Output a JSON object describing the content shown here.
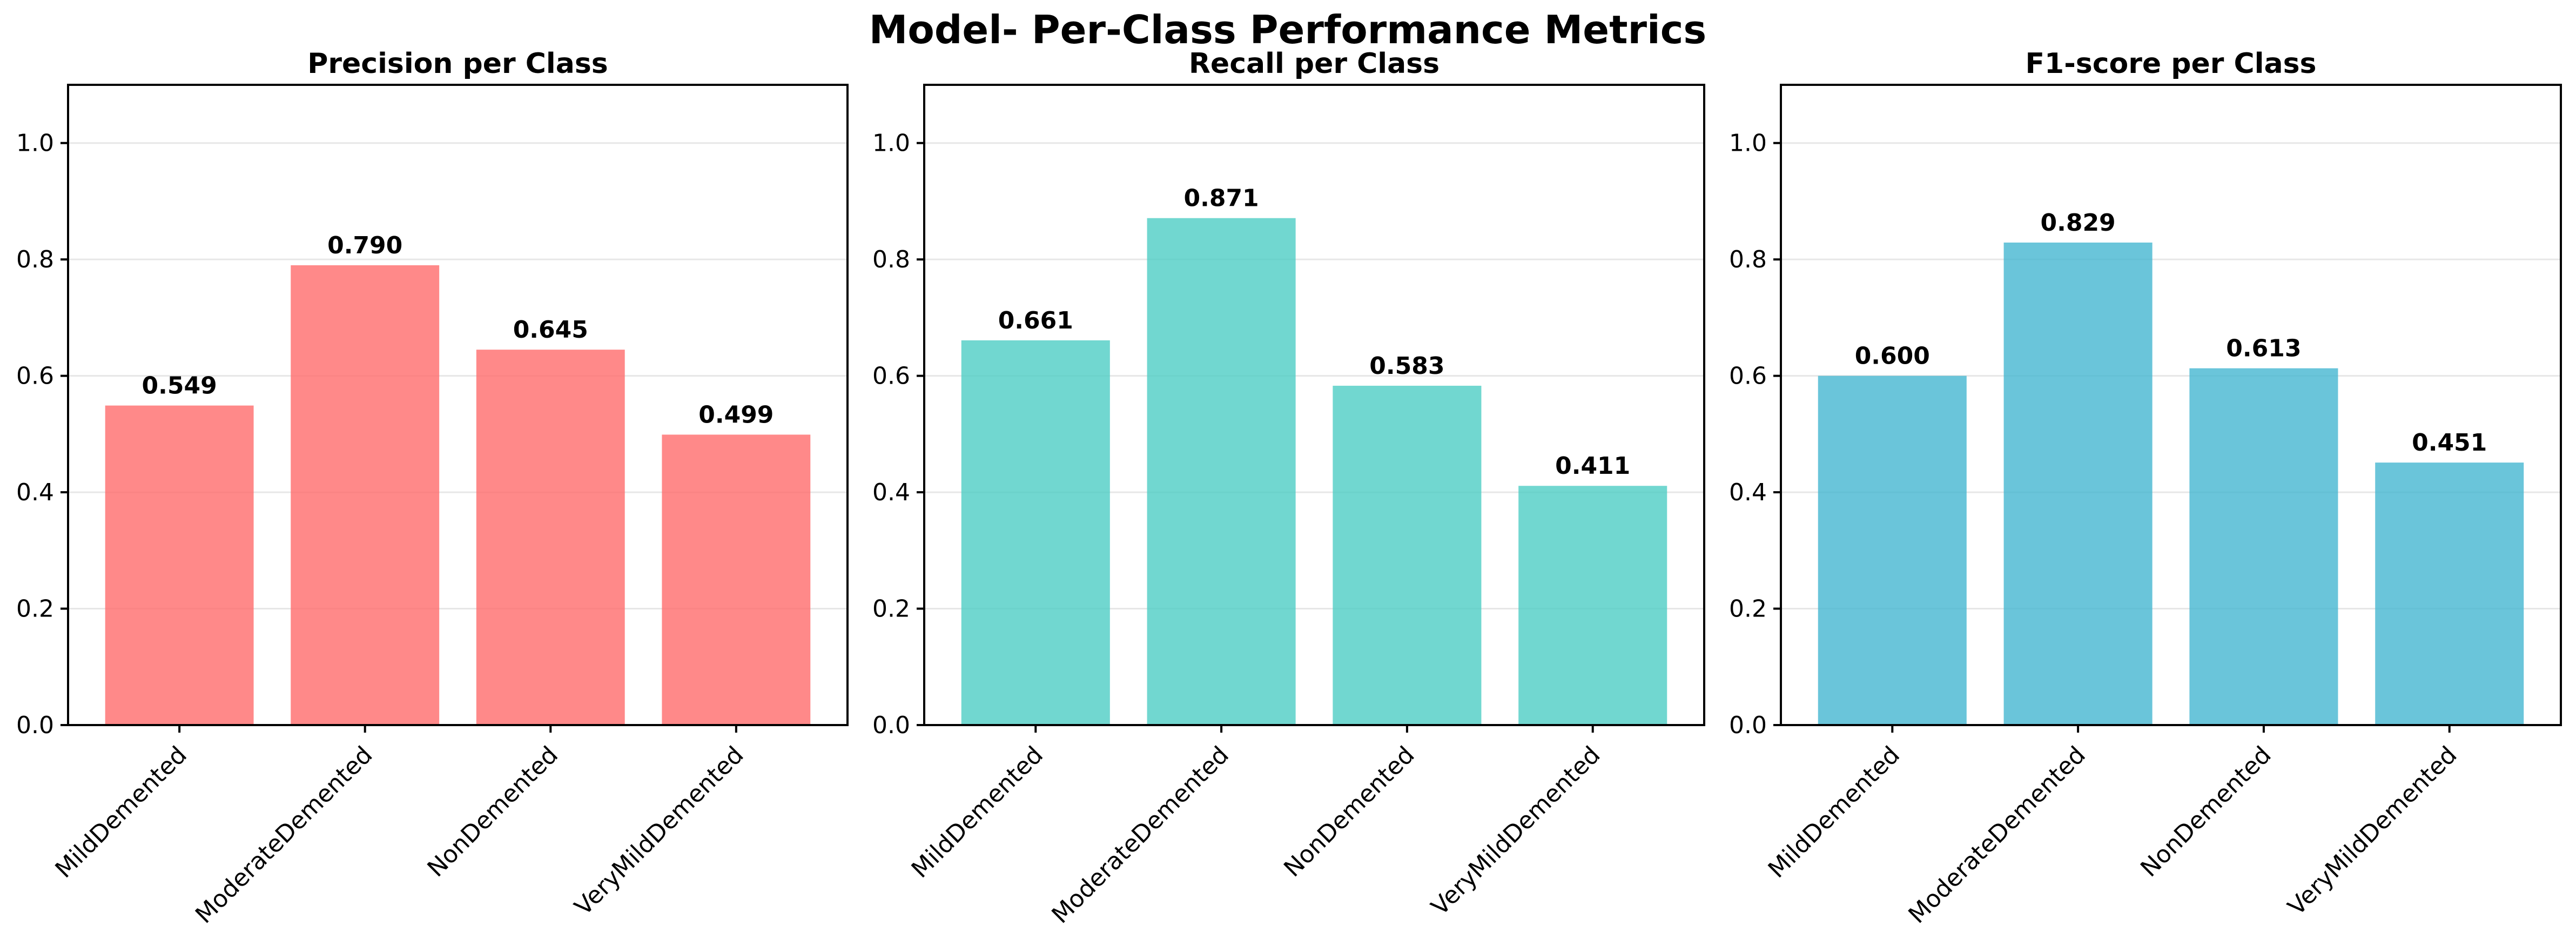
{
  "figure": {
    "suptitle": "Model- Per-Class Performance Metrics"
  },
  "chart_data": [
    {
      "type": "bar",
      "title": "Precision per Class",
      "categories": [
        "MildDemented",
        "ModerateDemented",
        "NonDemented",
        "VeryMildDemented"
      ],
      "values": [
        0.549,
        0.79,
        0.645,
        0.499
      ],
      "value_labels": [
        "0.549",
        "0.790",
        "0.645",
        "0.499"
      ],
      "color": "#ff6b6b",
      "ylim": [
        0,
        1.1
      ],
      "yticks": [
        0.0,
        0.2,
        0.4,
        0.6,
        0.8,
        1.0
      ],
      "ytick_labels": [
        "0.0",
        "0.2",
        "0.4",
        "0.6",
        "0.8",
        "1.0"
      ],
      "xlabel": "",
      "ylabel": "",
      "grid": "y"
    },
    {
      "type": "bar",
      "title": "Recall per Class",
      "categories": [
        "MildDemented",
        "ModerateDemented",
        "NonDemented",
        "VeryMildDemented"
      ],
      "values": [
        0.661,
        0.871,
        0.583,
        0.411
      ],
      "value_labels": [
        "0.661",
        "0.871",
        "0.583",
        "0.411"
      ],
      "color": "#4ecdc4",
      "ylim": [
        0,
        1.1
      ],
      "yticks": [
        0.0,
        0.2,
        0.4,
        0.6,
        0.8,
        1.0
      ],
      "ytick_labels": [
        "0.0",
        "0.2",
        "0.4",
        "0.6",
        "0.8",
        "1.0"
      ],
      "xlabel": "",
      "ylabel": "",
      "grid": "y"
    },
    {
      "type": "bar",
      "title": "F1-score per Class",
      "categories": [
        "MildDemented",
        "ModerateDemented",
        "NonDemented",
        "VeryMildDemented"
      ],
      "values": [
        0.6,
        0.829,
        0.613,
        0.451
      ],
      "value_labels": [
        "0.600",
        "0.829",
        "0.613",
        "0.451"
      ],
      "color": "#45b7d1",
      "ylim": [
        0,
        1.1
      ],
      "yticks": [
        0.0,
        0.2,
        0.4,
        0.6,
        0.8,
        1.0
      ],
      "ytick_labels": [
        "0.0",
        "0.2",
        "0.4",
        "0.6",
        "0.8",
        "1.0"
      ],
      "xlabel": "",
      "ylabel": "",
      "grid": "y"
    }
  ]
}
